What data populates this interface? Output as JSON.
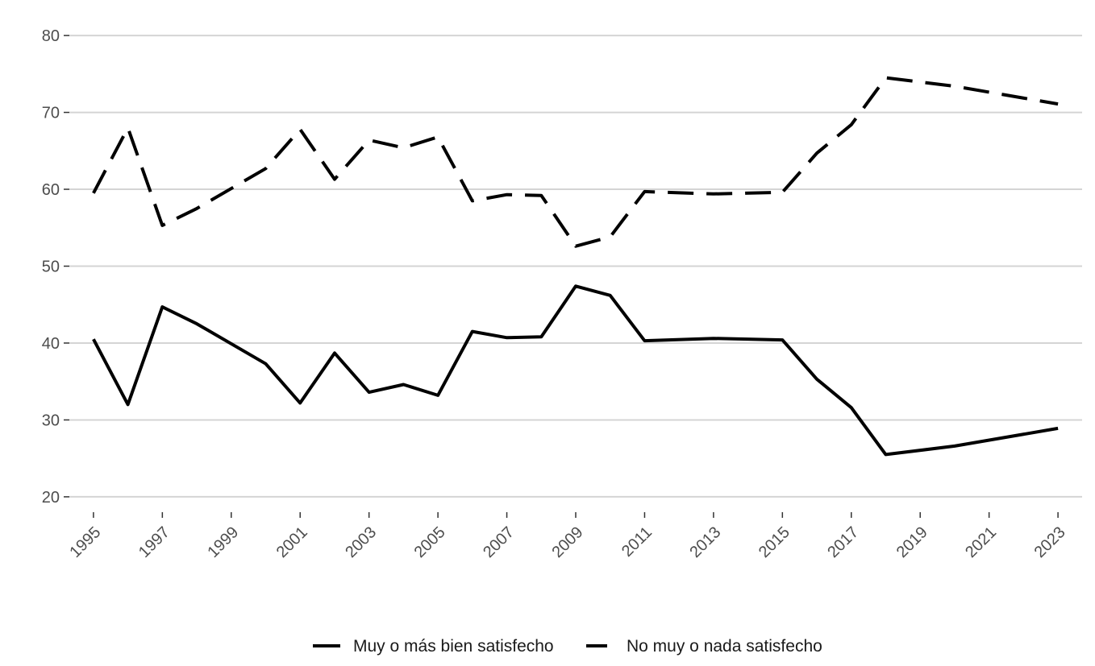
{
  "chart_data": {
    "type": "line",
    "title": "",
    "xlabel": "",
    "ylabel": "",
    "ylim": [
      18,
      82
    ],
    "xlim": [
      1994.3,
      2023.7
    ],
    "y_ticks": [
      20,
      30,
      40,
      50,
      60,
      70,
      80
    ],
    "x_ticks": [
      1995,
      1997,
      1999,
      2001,
      2003,
      2005,
      2007,
      2009,
      2011,
      2013,
      2015,
      2017,
      2019,
      2021,
      2023
    ],
    "grid": "horizontal",
    "legend_position": "bottom",
    "series": [
      {
        "name": "Muy o más bien satisfecho",
        "line_style": "solid",
        "color": "#000000",
        "x": [
          1995,
          1996,
          1997,
          1998,
          2000,
          2001,
          2002,
          2003,
          2004,
          2005,
          2006,
          2007,
          2008,
          2009,
          2010,
          2011,
          2013,
          2015,
          2016,
          2017,
          2018,
          2020,
          2023
        ],
        "values": [
          40.5,
          32.0,
          44.7,
          42.5,
          37.3,
          32.2,
          38.7,
          33.6,
          34.6,
          33.2,
          41.5,
          40.7,
          40.8,
          47.4,
          46.2,
          40.3,
          40.6,
          40.4,
          35.3,
          31.6,
          25.5,
          26.6,
          28.9
        ]
      },
      {
        "name": "No muy o nada satisfecho",
        "line_style": "dashed",
        "color": "#000000",
        "x": [
          1995,
          1996,
          1997,
          1998,
          2000,
          2001,
          2002,
          2003,
          2004,
          2005,
          2006,
          2007,
          2008,
          2009,
          2010,
          2011,
          2013,
          2015,
          2016,
          2017,
          2018,
          2020,
          2023
        ],
        "values": [
          59.5,
          68.0,
          55.3,
          57.5,
          62.7,
          67.8,
          61.3,
          66.4,
          65.4,
          66.8,
          58.5,
          59.3,
          59.2,
          52.6,
          53.8,
          59.7,
          59.4,
          59.6,
          64.7,
          68.4,
          74.5,
          73.4,
          71.1
        ]
      }
    ]
  }
}
